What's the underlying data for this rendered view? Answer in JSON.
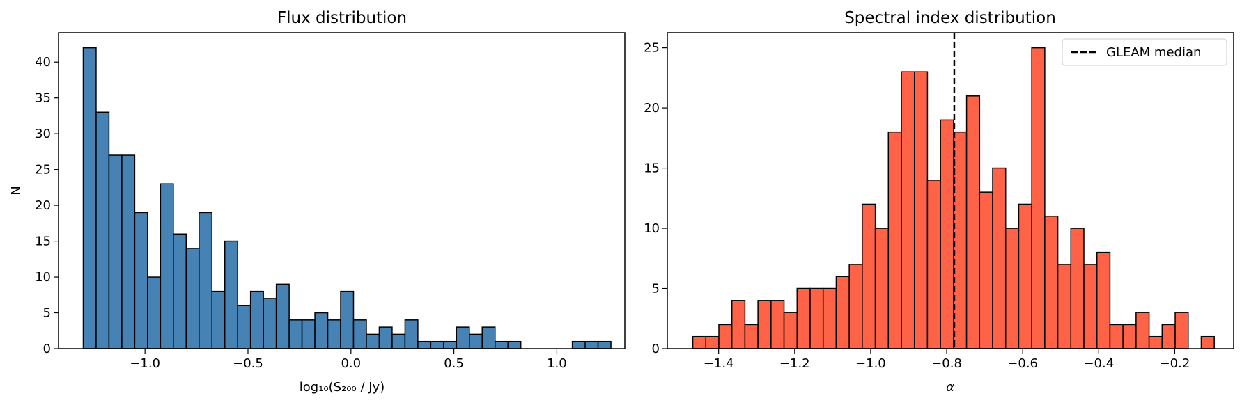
{
  "chart_data": [
    {
      "type": "bar",
      "title": "Flux distribution",
      "xlabel": "log₁₀(S₂₀₀ / Jy)",
      "ylabel": "N",
      "bar_color": "#4682b4",
      "edge_color": "#000000",
      "xlim": [
        -1.42,
        1.33
      ],
      "ylim": [
        0,
        44.1
      ],
      "xticks": [
        -1.0,
        -0.5,
        0.0,
        0.5,
        1.0
      ],
      "xtick_labels": [
        "−1.0",
        "−0.5",
        "0.0",
        "0.5",
        "1.0"
      ],
      "yticks": [
        0,
        5,
        10,
        15,
        20,
        25,
        30,
        35,
        40
      ],
      "ytick_labels": [
        "0",
        "5",
        "10",
        "15",
        "20",
        "25",
        "30",
        "35",
        "40"
      ],
      "bin_start": -1.3,
      "bin_width": 0.0625,
      "values": [
        42,
        33,
        27,
        27,
        19,
        10,
        23,
        16,
        14,
        19,
        8,
        15,
        6,
        8,
        7,
        9,
        4,
        4,
        5,
        4,
        8,
        4,
        2,
        3,
        2,
        4,
        1,
        1,
        1,
        3,
        2,
        3,
        1,
        1,
        0,
        0,
        0,
        0,
        1,
        1,
        1,
        0
      ]
    },
    {
      "type": "bar",
      "title": "Spectral index distribution",
      "xlabel": "α",
      "ylabel": "",
      "bar_color": "#ff6347",
      "edge_color": "#000000",
      "xlim": [
        -1.535,
        -0.045
      ],
      "ylim": [
        0,
        26.25
      ],
      "xticks": [
        -1.4,
        -1.2,
        -1.0,
        -0.8,
        -0.6,
        -0.4,
        -0.2
      ],
      "xtick_labels": [
        "−1.4",
        "−1.2",
        "−1.0",
        "−0.8",
        "−0.6",
        "−0.4",
        "−0.2"
      ],
      "yticks": [
        0,
        5,
        10,
        15,
        20,
        25
      ],
      "ytick_labels": [
        "0",
        "5",
        "10",
        "15",
        "20",
        "25"
      ],
      "bin_start": -1.468,
      "bin_width": 0.0343,
      "values": [
        1,
        1,
        2,
        4,
        2,
        4,
        4,
        3,
        5,
        5,
        5,
        6,
        7,
        12,
        10,
        18,
        23,
        23,
        14,
        19,
        18,
        21,
        13,
        15,
        10,
        12,
        25,
        11,
        7,
        10,
        7,
        8,
        2,
        2,
        3,
        1,
        2,
        3,
        0,
        1
      ],
      "median_line": {
        "x": -0.78,
        "style": "dashed",
        "color": "#000000"
      },
      "legend": {
        "position": "top-right",
        "entries": [
          "GLEAM median"
        ]
      }
    }
  ]
}
